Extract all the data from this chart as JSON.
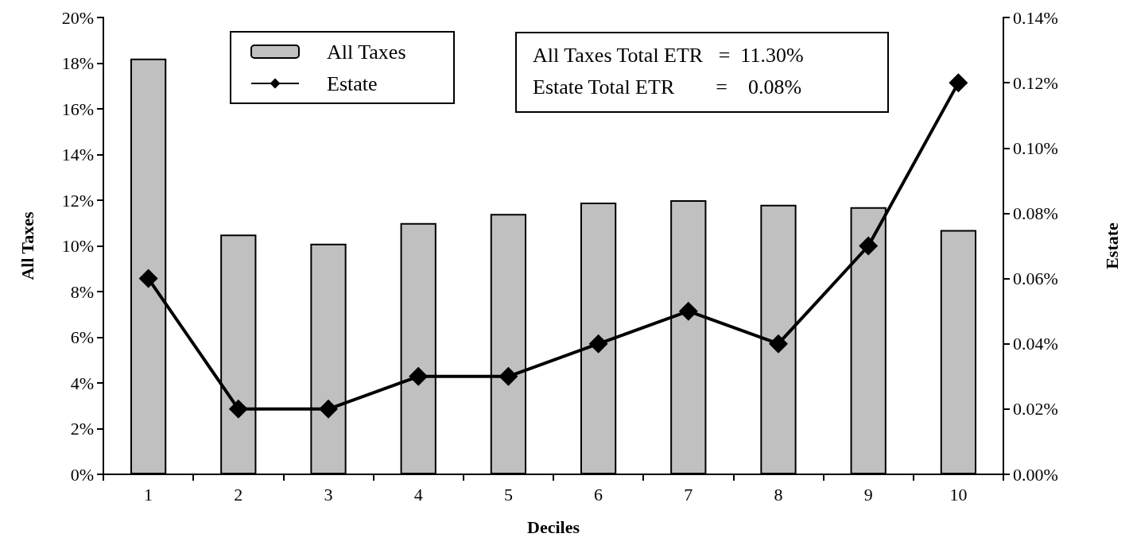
{
  "chart_data": {
    "type": "bar",
    "xlabel": "Deciles",
    "ylabel": "All Taxes",
    "y2label": "Estate",
    "categories": [
      "1",
      "2",
      "3",
      "4",
      "5",
      "6",
      "7",
      "8",
      "9",
      "10"
    ],
    "series": [
      {
        "name": "All Taxes",
        "color": "#c0c0c0",
        "values": [
          18.2,
          10.5,
          10.1,
          11.0,
          11.4,
          11.9,
          12.0,
          11.8,
          11.7,
          10.7
        ]
      },
      {
        "name": "Estate",
        "type": "line",
        "axis": "y2",
        "color": "#000000",
        "marker": "diamond",
        "values": [
          0.06,
          0.02,
          0.02,
          0.03,
          0.03,
          0.04,
          0.05,
          0.04,
          0.07,
          0.12
        ]
      }
    ],
    "ylim": [
      0,
      20
    ],
    "yticks": [
      {
        "value": 0,
        "label": "0%"
      },
      {
        "value": 2,
        "label": "2%"
      },
      {
        "value": 4,
        "label": "4%"
      },
      {
        "value": 6,
        "label": "6%"
      },
      {
        "value": 8,
        "label": "8%"
      },
      {
        "value": 10,
        "label": "10%"
      },
      {
        "value": 12,
        "label": "12%"
      },
      {
        "value": 14,
        "label": "14%"
      },
      {
        "value": 16,
        "label": "16%"
      },
      {
        "value": 18,
        "label": "18%"
      },
      {
        "value": 20,
        "label": "20%"
      }
    ],
    "y2lim": [
      0,
      0.14
    ],
    "y2ticks": [
      {
        "value": 0,
        "label": "0.00%"
      },
      {
        "value": 0.02,
        "label": "0.02%"
      },
      {
        "value": 0.04,
        "label": "0.04%"
      },
      {
        "value": 0.06,
        "label": "0.06%"
      },
      {
        "value": 0.08,
        "label": "0.08%"
      },
      {
        "value": 0.1,
        "label": "0.10%"
      },
      {
        "value": 0.12,
        "label": "0.12%"
      },
      {
        "value": 0.14,
        "label": "0.14%"
      }
    ],
    "grid": false,
    "legend": "top",
    "annotations": [
      "All Taxes Total ETR   =  11.30%",
      "Estate Total ETR        =    0.08%"
    ]
  }
}
